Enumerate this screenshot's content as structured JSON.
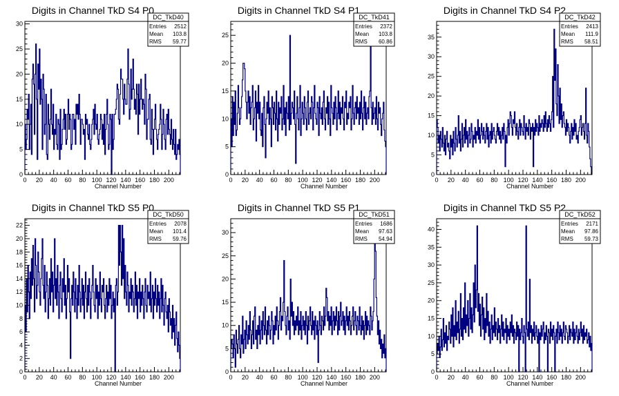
{
  "chart_data": [
    {
      "type": "histogram",
      "title": "Digits in Channel TkD S4 P0",
      "xlabel": "Channel Number",
      "xlim": [
        0,
        216
      ],
      "ylim": [
        0,
        30.5
      ],
      "xticks": [
        0,
        20,
        40,
        60,
        80,
        100,
        120,
        140,
        160,
        180,
        200
      ],
      "yticks": [
        0,
        5,
        10,
        15,
        20,
        25,
        30
      ],
      "stats": {
        "name": "DC_TkD40",
        "Entries": "2512",
        "Mean": "103.8",
        "RMS": "59.77"
      },
      "color": "#000080",
      "values": [
        10,
        5,
        7,
        13,
        11,
        16,
        5,
        10,
        14,
        4,
        19,
        22,
        18,
        8,
        20,
        26,
        15,
        3,
        22,
        17,
        25,
        14,
        19,
        15,
        5,
        20,
        17,
        8,
        10,
        16,
        4,
        3,
        14,
        10,
        7,
        11,
        17,
        10,
        8,
        14,
        5,
        9,
        8,
        12,
        6,
        5,
        11,
        10,
        3,
        13,
        5,
        6,
        9,
        11,
        13,
        9,
        12,
        6,
        7,
        12,
        15,
        9,
        12,
        11,
        5,
        6,
        12,
        12,
        9,
        11,
        6,
        14,
        12,
        14,
        11,
        16,
        12,
        6,
        11,
        11,
        10,
        8,
        9,
        3,
        12,
        10,
        11,
        8,
        7,
        10,
        6,
        5,
        7,
        10,
        11,
        13,
        8,
        14,
        10,
        9,
        12,
        7,
        6,
        8,
        9,
        12,
        11,
        7,
        10,
        6,
        12,
        4,
        9,
        12,
        15,
        10,
        5,
        6,
        12,
        11,
        0,
        12,
        5,
        7,
        12,
        12,
        13,
        15,
        18,
        17,
        11,
        10,
        16,
        21,
        19,
        19,
        15,
        12,
        18,
        15,
        14,
        14,
        19,
        25,
        18,
        11,
        13,
        21,
        15,
        17,
        23,
        17,
        13,
        15,
        12,
        18,
        16,
        8,
        18,
        12,
        15,
        19,
        15,
        13,
        15,
        14,
        10,
        20,
        17,
        7,
        11,
        11,
        15,
        16,
        7,
        6,
        13,
        9,
        4,
        9,
        11,
        14,
        9,
        7,
        5,
        8,
        9,
        10,
        14,
        11,
        5,
        8,
        13,
        10,
        7,
        5,
        11,
        12,
        8,
        13,
        9,
        8,
        6,
        11,
        7,
        5,
        9,
        6,
        4,
        9,
        3,
        4,
        6,
        5,
        7,
        4
      ]
    },
    {
      "type": "histogram",
      "title": "Digits in Channel TkD S4 P1",
      "xlabel": "Channel Number",
      "xlim": [
        0,
        216
      ],
      "ylim": [
        0,
        27.5
      ],
      "xticks": [
        0,
        20,
        40,
        60,
        80,
        100,
        120,
        140,
        160,
        180,
        200
      ],
      "yticks": [
        0,
        5,
        10,
        15,
        20,
        25
      ],
      "stats": {
        "name": "DC_TkD41",
        "Entries": "2372",
        "Mean": "103.8",
        "RMS": "60.86"
      },
      "color": "#000080",
      "values": [
        10,
        5,
        14,
        7,
        13,
        9,
        15,
        7,
        8,
        11,
        16,
        12,
        9,
        10,
        12,
        14,
        17,
        20,
        20,
        19,
        15,
        13,
        10,
        13,
        15,
        11,
        14,
        9,
        12,
        13,
        16,
        8,
        10,
        12,
        15,
        6,
        13,
        11,
        16,
        10,
        13,
        8,
        7,
        11,
        5,
        12,
        14,
        9,
        3,
        10,
        13,
        11,
        15,
        9,
        12,
        10,
        5,
        14,
        12,
        9,
        13,
        11,
        8,
        15,
        10,
        6,
        13,
        9,
        12,
        11,
        14,
        8,
        10,
        16,
        9,
        12,
        7,
        13,
        11,
        10,
        14,
        8,
        25,
        9,
        11,
        13,
        12,
        10,
        15,
        9,
        2,
        11,
        14,
        10,
        8,
        12,
        16,
        7,
        10,
        13,
        11,
        9,
        14,
        12,
        10,
        8,
        13,
        15,
        9,
        11,
        12,
        10,
        14,
        13,
        8,
        12,
        16,
        11,
        10,
        9,
        13,
        12,
        7,
        14,
        11,
        10,
        12,
        9,
        13,
        15,
        10,
        8,
        12,
        11,
        14,
        9,
        13,
        10,
        7,
        16,
        12,
        11,
        9,
        13,
        10,
        14,
        12,
        8,
        11,
        15,
        10,
        13,
        9,
        12,
        11,
        14,
        10,
        8,
        13,
        12,
        15,
        9,
        11,
        10,
        13,
        12,
        14,
        8,
        10,
        16,
        11,
        9,
        12,
        13,
        10,
        14,
        11,
        12,
        9,
        13,
        10,
        15,
        11,
        8,
        12,
        14,
        10,
        13,
        9,
        11,
        12,
        10,
        14,
        15,
        24,
        12,
        9,
        13,
        10,
        11,
        12,
        9,
        14,
        10,
        8,
        13,
        11,
        12,
        9,
        7,
        10,
        11,
        13,
        8,
        6,
        5
      ]
    },
    {
      "type": "histogram",
      "title": "Digits in Channel TkD S4 P2",
      "xlabel": "Channel Number",
      "xlim": [
        0,
        216
      ],
      "ylim": [
        0,
        39
      ],
      "xticks": [
        0,
        20,
        40,
        60,
        80,
        100,
        120,
        140,
        160,
        180,
        200
      ],
      "yticks": [
        0,
        5,
        10,
        15,
        20,
        25,
        30,
        35
      ],
      "stats": {
        "name": "DC_TkD42",
        "Entries": "2413",
        "Mean": "111.9",
        "RMS": "58.51"
      },
      "color": "#000080",
      "values": [
        14,
        12,
        8,
        10,
        6,
        11,
        9,
        7,
        12,
        8,
        6,
        10,
        5,
        9,
        11,
        7,
        8,
        6,
        4,
        10,
        7,
        9,
        5,
        11,
        8,
        6,
        12,
        9,
        7,
        10,
        15,
        8,
        11,
        6,
        9,
        13,
        7,
        10,
        12,
        8,
        14,
        9,
        11,
        7,
        10,
        12,
        8,
        9,
        13,
        11,
        7,
        10,
        9,
        12,
        8,
        11,
        10,
        14,
        9,
        12,
        8,
        10,
        13,
        11,
        9,
        12,
        10,
        8,
        11,
        13,
        9,
        12,
        7,
        10,
        11,
        8,
        13,
        9,
        11,
        12,
        10,
        9,
        8,
        11,
        13,
        10,
        12,
        9,
        11,
        8,
        10,
        12,
        9,
        13,
        11,
        2,
        10,
        8,
        12,
        14,
        10,
        13,
        16,
        15,
        12,
        10,
        14,
        13,
        16,
        12,
        10,
        13,
        11,
        9,
        12,
        14,
        10,
        13,
        12,
        11,
        10,
        15,
        12,
        9,
        13,
        11,
        12,
        10,
        14,
        13,
        9,
        12,
        11,
        13,
        2,
        12,
        10,
        14,
        11,
        13,
        12,
        10,
        15,
        11,
        13,
        12,
        14,
        13,
        11,
        15,
        12,
        16,
        13,
        11,
        14,
        12,
        15,
        13,
        11,
        14,
        16,
        25,
        12,
        37,
        24,
        32,
        18,
        15,
        28,
        20,
        13,
        22,
        14,
        18,
        12,
        15,
        16,
        13,
        12,
        10,
        14,
        11,
        13,
        12,
        10,
        8,
        11,
        13,
        9,
        12,
        10,
        14,
        11,
        13,
        9,
        10,
        8,
        11,
        12,
        14,
        15,
        10,
        12,
        13,
        11,
        9,
        13,
        22,
        10,
        8,
        13,
        11,
        7,
        4,
        2,
        0
      ]
    },
    {
      "type": "histogram",
      "title": "Digits in Channel TkD S5 P0",
      "xlabel": "Channel Number",
      "xlim": [
        0,
        216
      ],
      "ylim": [
        0,
        23
      ],
      "xticks": [
        0,
        20,
        40,
        60,
        80,
        100,
        120,
        140,
        160,
        180,
        200
      ],
      "yticks": [
        0,
        2,
        4,
        6,
        8,
        10,
        12,
        14,
        16,
        18,
        20,
        22
      ],
      "stats": {
        "name": "DC_TkD50",
        "Entries": "2078",
        "Mean": "101.4",
        "RMS": "59.76"
      },
      "color": "#000080",
      "values": [
        10,
        6,
        14,
        9,
        16,
        12,
        8,
        15,
        11,
        17,
        13,
        19,
        14,
        9,
        20,
        16,
        11,
        13,
        18,
        15,
        12,
        10,
        14,
        17,
        20,
        13,
        11,
        16,
        9,
        12,
        15,
        13,
        8,
        11,
        14,
        10,
        17,
        12,
        15,
        9,
        13,
        20,
        11,
        14,
        10,
        16,
        12,
        8,
        13,
        15,
        11,
        9,
        14,
        12,
        17,
        10,
        13,
        8,
        11,
        16,
        12,
        14,
        9,
        2,
        11,
        13,
        10,
        15,
        12,
        9,
        14,
        11,
        8,
        13,
        10,
        16,
        12,
        9,
        11,
        14,
        10,
        13,
        8,
        12,
        15,
        11,
        9,
        13,
        10,
        14,
        12,
        8,
        11,
        13,
        16,
        12,
        10,
        9,
        14,
        11,
        13,
        8,
        12,
        10,
        15,
        11,
        9,
        13,
        12,
        14,
        10,
        8,
        11,
        13,
        9,
        12,
        10,
        14,
        11,
        13,
        8,
        10,
        12,
        9,
        11,
        0,
        13,
        14,
        10,
        12,
        22,
        16,
        22,
        18,
        13,
        22,
        14,
        20,
        11,
        16,
        12,
        10,
        15,
        13,
        9,
        12,
        11,
        14,
        10,
        13,
        12,
        9,
        11,
        15,
        10,
        13,
        8,
        12,
        11,
        14,
        9,
        12,
        10,
        13,
        11,
        8,
        12,
        14,
        10,
        9,
        13,
        11,
        12,
        10,
        15,
        9,
        11,
        13,
        8,
        12,
        10,
        14,
        11,
        9,
        13,
        10,
        12,
        8,
        11,
        14,
        9,
        13,
        10,
        7,
        11,
        12,
        9,
        8,
        10,
        6,
        11,
        9,
        7,
        8,
        5,
        10,
        6,
        8,
        4,
        7,
        9,
        5,
        3,
        6,
        4,
        2
      ]
    },
    {
      "type": "histogram",
      "title": "Digits in Channel TkD S5 P1",
      "xlabel": "Channel Number",
      "xlim": [
        0,
        216
      ],
      "ylim": [
        0,
        33
      ],
      "xticks": [
        0,
        20,
        40,
        60,
        80,
        100,
        120,
        140,
        160,
        180,
        200
      ],
      "yticks": [
        0,
        5,
        10,
        15,
        20,
        25,
        30
      ],
      "stats": {
        "name": "DC_TkD51",
        "Entries": "1686",
        "Mean": "97.63",
        "RMS": "54.94"
      },
      "color": "#000080",
      "values": [
        5,
        7,
        6,
        3,
        8,
        5,
        1,
        9,
        6,
        4,
        7,
        10,
        5,
        3,
        8,
        6,
        12,
        4,
        7,
        9,
        5,
        11,
        8,
        6,
        10,
        7,
        13,
        9,
        5,
        8,
        11,
        6,
        12,
        14,
        7,
        9,
        5,
        10,
        8,
        12,
        6,
        9,
        11,
        7,
        13,
        10,
        8,
        14,
        9,
        6,
        11,
        8,
        12,
        10,
        7,
        9,
        13,
        11,
        6,
        10,
        8,
        12,
        9,
        14,
        11,
        7,
        10,
        13,
        16,
        9,
        12,
        11,
        15,
        24,
        13,
        10,
        8,
        12,
        14,
        9,
        11,
        7,
        20,
        12,
        15,
        10,
        13,
        8,
        11,
        9,
        12,
        10,
        14,
        8,
        11,
        9,
        13,
        7,
        10,
        12,
        9,
        11,
        8,
        13,
        10,
        6,
        12,
        9,
        11,
        14,
        10,
        8,
        13,
        9,
        11,
        7,
        12,
        10,
        8,
        11,
        2,
        9,
        13,
        10,
        8,
        12,
        11,
        9,
        14,
        10,
        12,
        18,
        16,
        11,
        13,
        9,
        12,
        10,
        14,
        8,
        11,
        13,
        9,
        12,
        10,
        14,
        11,
        8,
        13,
        9,
        12,
        15,
        10,
        11,
        13,
        9,
        12,
        8,
        11,
        14,
        10,
        12,
        9,
        13,
        11,
        8,
        10,
        12,
        14,
        9,
        11,
        13,
        10,
        8,
        12,
        11,
        9,
        14,
        10,
        8,
        12,
        9,
        11,
        7,
        10,
        13,
        8,
        12,
        9,
        11,
        10,
        8,
        14,
        12,
        9,
        11,
        13,
        20,
        30,
        26,
        16,
        12,
        8,
        11,
        6,
        9,
        5,
        7,
        3,
        6,
        4,
        8,
        3,
        5
      ]
    },
    {
      "type": "histogram",
      "title": "Digits in Channel TkD S5 P2",
      "xlabel": "Channel Number",
      "xlim": [
        0,
        216
      ],
      "ylim": [
        0,
        43
      ],
      "xticks": [
        0,
        20,
        40,
        60,
        80,
        100,
        120,
        140,
        160,
        180,
        200
      ],
      "yticks": [
        0,
        5,
        10,
        15,
        20,
        25,
        30,
        35,
        40
      ],
      "stats": {
        "name": "DC_TkD52",
        "Entries": "2171",
        "Mean": "97.86",
        "RMS": "59.73"
      },
      "color": "#000080",
      "values": [
        5,
        8,
        6,
        10,
        4,
        7,
        12,
        6,
        9,
        15,
        7,
        11,
        8,
        13,
        6,
        10,
        9,
        14,
        12,
        8,
        16,
        10,
        18,
        7,
        13,
        10,
        20,
        9,
        14,
        11,
        17,
        8,
        12,
        22,
        10,
        15,
        9,
        18,
        12,
        25,
        11,
        16,
        13,
        20,
        10,
        15,
        22,
        12,
        18,
        11,
        16,
        25,
        14,
        30,
        18,
        23,
        41,
        17,
        22,
        13,
        19,
        10,
        16,
        21,
        12,
        18,
        9,
        15,
        11,
        22,
        13,
        17,
        10,
        14,
        8,
        12,
        16,
        9,
        13,
        11,
        18,
        10,
        14,
        12,
        9,
        15,
        11,
        13,
        8,
        12,
        16,
        10,
        14,
        9,
        12,
        11,
        15,
        8,
        13,
        10,
        12,
        9,
        14,
        11,
        16,
        10,
        13,
        8,
        12,
        11,
        9,
        14,
        10,
        13,
        0,
        12,
        9,
        11,
        15,
        10,
        8,
        13,
        11,
        0,
        41,
        12,
        10,
        14,
        9,
        26,
        11,
        13,
        8,
        12,
        10,
        14,
        9,
        11,
        13,
        10,
        8,
        12,
        0,
        11,
        9,
        13,
        10,
        12,
        14,
        8,
        11,
        9,
        13,
        10,
        0,
        12,
        11,
        8,
        14,
        10,
        12,
        9,
        13,
        11,
        0,
        10,
        12,
        8,
        14,
        11,
        9,
        13,
        10,
        12,
        8,
        11,
        14,
        10,
        9,
        13,
        12,
        11,
        8,
        10,
        13,
        9,
        12,
        11,
        10,
        14,
        8,
        12,
        9,
        11,
        13,
        10,
        8,
        12,
        9,
        11,
        14,
        10,
        12,
        8,
        13,
        9,
        11,
        10,
        12,
        8,
        9,
        11,
        7,
        10,
        6,
        8
      ]
    }
  ]
}
